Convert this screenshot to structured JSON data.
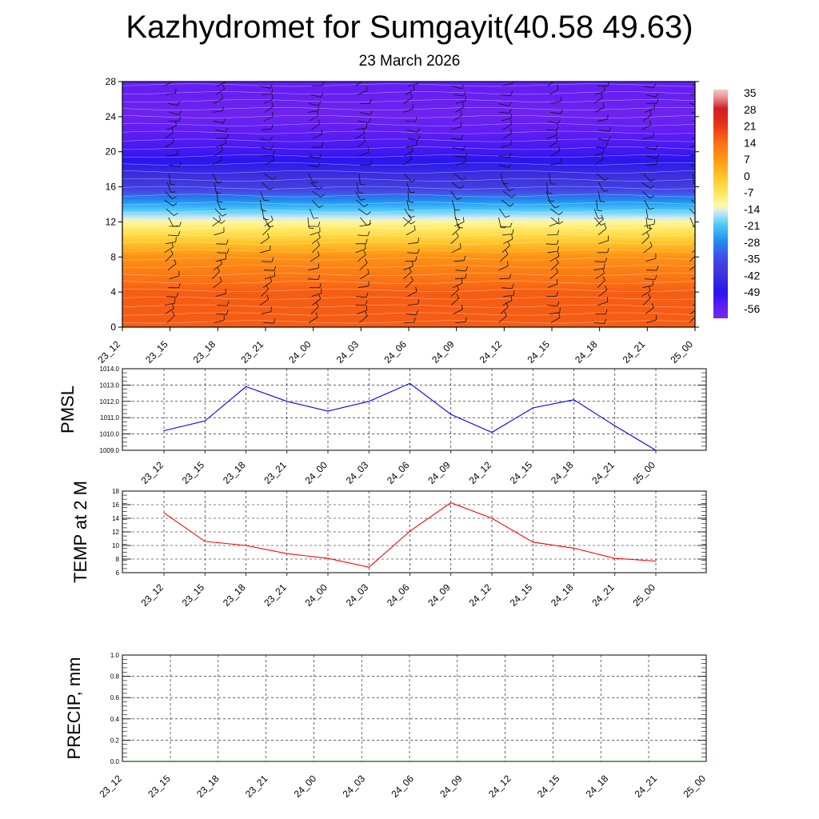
{
  "header": {
    "title": "Kazhydromet for Sumgayit(40.58 49.63)",
    "subtitle": "23 March 2026"
  },
  "chart_data": [
    {
      "type": "heatmap",
      "name": "temperature-wind-cross-section",
      "title": "",
      "ylabel": "",
      "y_ticks": [
        "0",
        "4",
        "8",
        "12",
        "16",
        "20",
        "24",
        "28"
      ],
      "ylim": [
        0,
        28
      ],
      "x_ticks": [
        "23_12",
        "23_15",
        "23_18",
        "23_21",
        "24_00",
        "24_03",
        "24_06",
        "24_09",
        "24_12",
        "24_15",
        "24_18",
        "24_21",
        "25_00"
      ],
      "colorbar": {
        "labels": [
          "35",
          "28",
          "21",
          "14",
          "7",
          "0",
          "-7",
          "-14",
          "-21",
          "-28",
          "-35",
          "-42",
          "-49",
          "-56"
        ],
        "range": [
          -60,
          36
        ]
      },
      "level_temps": [
        {
          "level": 0,
          "temp": 16
        },
        {
          "level": 4,
          "temp": 16
        },
        {
          "level": 8,
          "temp": 8
        },
        {
          "level": 12,
          "temp": -12
        },
        {
          "level": 16,
          "temp": -38
        },
        {
          "level": 20,
          "temp": -52
        },
        {
          "level": 24,
          "temp": -58
        },
        {
          "level": 28,
          "temp": -56
        }
      ],
      "wind_barb_levels": [
        0,
        1,
        2,
        3,
        4,
        5,
        6,
        7,
        8,
        9,
        10,
        11,
        12,
        13,
        14,
        15,
        16,
        17,
        18,
        19,
        20,
        21,
        22,
        23,
        24,
        25,
        26,
        27
      ]
    },
    {
      "type": "line",
      "name": "pmsl",
      "ylabel": "PMSL",
      "categories": [
        "23_12",
        "23_15",
        "23_18",
        "23_21",
        "24_00",
        "24_03",
        "24_06",
        "24_09",
        "24_12",
        "24_15",
        "24_18",
        "24_21",
        "25_00"
      ],
      "values": [
        1010.2,
        1010.8,
        1012.9,
        1012.0,
        1011.4,
        1012.0,
        1013.1,
        1011.2,
        1010.1,
        1011.6,
        1012.1,
        1010.5,
        1009.0
      ],
      "y_ticks": [
        "1009.0",
        "1010.0",
        "1011.0",
        "1012.0",
        "1013.0",
        "1014.0"
      ],
      "ylim": [
        1009,
        1014
      ],
      "color": "#0000ff"
    },
    {
      "type": "line",
      "name": "temp-2m",
      "ylabel": "TEMP at 2 M",
      "categories": [
        "23_12",
        "23_15",
        "23_18",
        "23_21",
        "24_00",
        "24_03",
        "24_06",
        "24_09",
        "24_12",
        "24_15",
        "24_18",
        "24_21",
        "25_00"
      ],
      "values": [
        14.8,
        10.6,
        10.0,
        8.8,
        8.1,
        6.8,
        12.1,
        16.3,
        14.0,
        10.5,
        9.6,
        8.1,
        7.7
      ],
      "y_ticks": [
        "6",
        "8",
        "10",
        "12",
        "14",
        "16",
        "18"
      ],
      "ylim": [
        6,
        18
      ],
      "color": "#ff0000"
    },
    {
      "type": "line",
      "name": "precip",
      "ylabel": "PRECIP, mm",
      "categories": [
        "23_12",
        "23_15",
        "23_18",
        "23_21",
        "24_00",
        "24_03",
        "24_06",
        "24_09",
        "24_12",
        "24_15",
        "24_18",
        "24_21",
        "25_00"
      ],
      "values": [
        0,
        0,
        0,
        0,
        0,
        0,
        0,
        0,
        0,
        0,
        0,
        0,
        0
      ],
      "y_ticks": [
        "0.0",
        "0.2",
        "0.4",
        "0.6",
        "0.8",
        "1.0"
      ],
      "ylim": [
        0,
        1
      ],
      "color": "#006400"
    }
  ]
}
